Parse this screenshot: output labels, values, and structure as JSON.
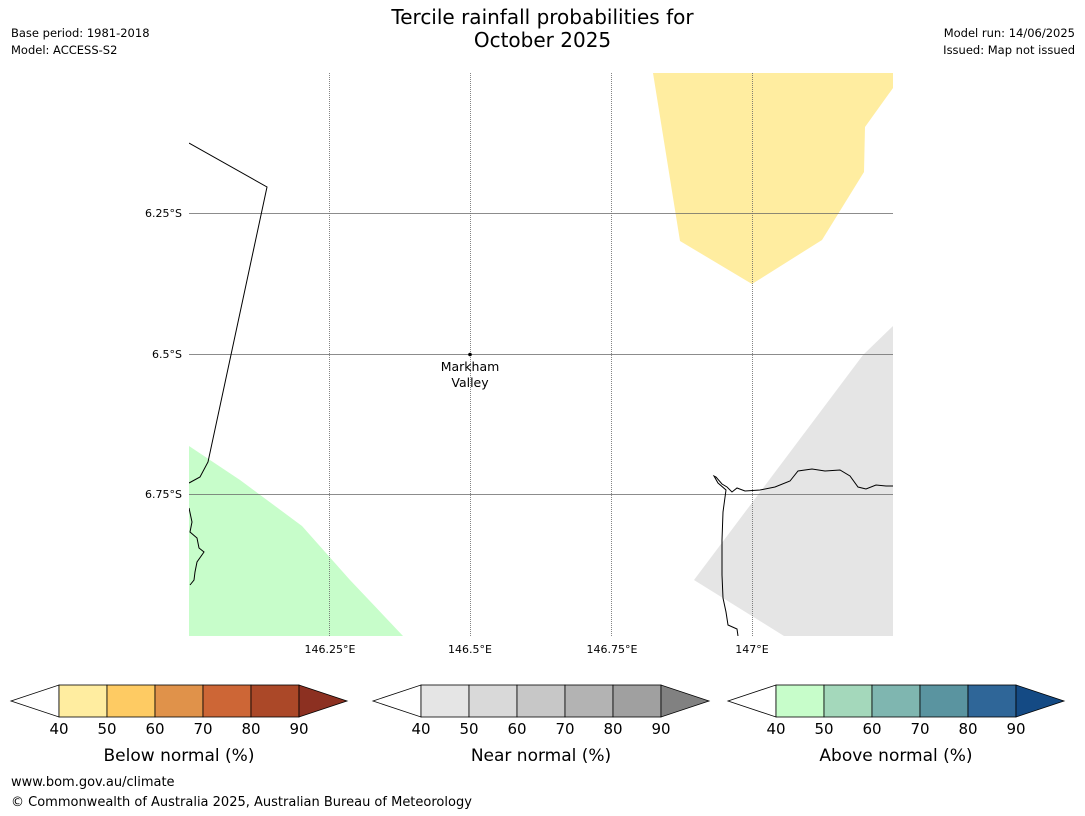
{
  "header": {
    "title_line1": "Tercile rainfall probabilities for",
    "title_line2": "October 2025",
    "base_period": "Base period: 1981-2018",
    "model": "Model: ACCESS-S2",
    "model_run": "Model run: 14/06/2025",
    "issued": "Issued: Map not issued"
  },
  "map": {
    "lat_labels": [
      "6.25°S",
      "6.5°S",
      "6.75°S"
    ],
    "lon_labels": [
      "146.25°E",
      "146.5°E",
      "146.75°E",
      "147°E"
    ],
    "place": {
      "name_line1": "Markham",
      "name_line2": "Valley",
      "lat": -6.5,
      "lon": 146.5
    },
    "extent": {
      "lon_min": 146.0,
      "lon_max": 147.25,
      "lat_min": -7.0,
      "lat_max": -6.0
    },
    "regions": [
      {
        "category": "below-normal",
        "band": "40-50",
        "color": "#ffeda0"
      },
      {
        "category": "above-normal",
        "band": "40-50",
        "color": "#c7fdca"
      },
      {
        "category": "near-normal",
        "band": "40-50",
        "color": "#e5e5e5"
      }
    ]
  },
  "legends": {
    "tick_labels": [
      "40",
      "50",
      "60",
      "70",
      "80",
      "90"
    ],
    "below": {
      "label": "Below normal (%)",
      "colors": [
        "#ffeda0",
        "#fecb63",
        "#e0924a",
        "#cd6636",
        "#ab4828",
        "#8c3021"
      ]
    },
    "near": {
      "label": "Near normal (%)",
      "colors": [
        "#e5e5e5",
        "#d9d9d9",
        "#c7c7c7",
        "#b3b3b3",
        "#a0a0a0",
        "#818181"
      ]
    },
    "above": {
      "label": "Above normal (%)",
      "colors": [
        "#c7fdca",
        "#a4d8bb",
        "#7fb6b0",
        "#5a94a0",
        "#2f6698",
        "#144a84"
      ]
    }
  },
  "footer": {
    "url": "www.bom.gov.au/climate",
    "copyright": "© Commonwealth of Australia 2025, Australian Bureau of Meteorology"
  }
}
